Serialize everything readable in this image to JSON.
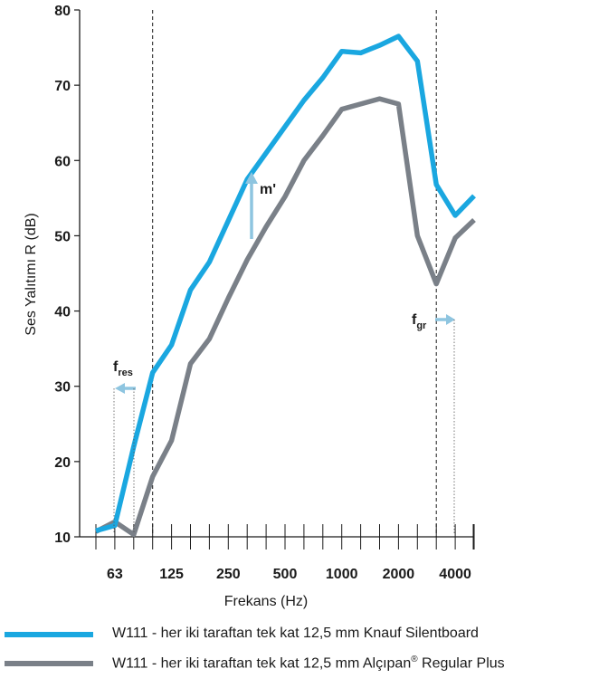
{
  "chart_data": {
    "type": "line",
    "xlabel": "Frekans (Hz)",
    "ylabel": "Ses Yalıtımı R (dB)",
    "ylim": [
      10,
      80
    ],
    "yticks": [
      10,
      20,
      30,
      40,
      50,
      60,
      70,
      80
    ],
    "x_scale": "log",
    "x_frequencies": [
      50,
      63,
      80,
      100,
      125,
      160,
      200,
      250,
      315,
      400,
      500,
      630,
      800,
      1000,
      1250,
      1600,
      2000,
      2500,
      3150,
      4000,
      5000
    ],
    "x_tick_labels": [
      {
        "label": "63",
        "value": 63
      },
      {
        "label": "125",
        "value": 125
      },
      {
        "label": "250",
        "value": 250
      },
      {
        "label": "500",
        "value": 500
      },
      {
        "label": "1000",
        "value": 1000
      },
      {
        "label": "2000",
        "value": 2000
      },
      {
        "label": "4000",
        "value": 4000
      }
    ],
    "series": [
      {
        "name": "W111 - her iki taraftan tek kat 12,5 mm Knauf Silentboard",
        "color": "#1aa7e0",
        "values": [
          10.8,
          11.5,
          22.0,
          31.8,
          35.5,
          42.8,
          46.5,
          52.0,
          57.5,
          61.0,
          64.5,
          68.0,
          71.0,
          74.5,
          74.3,
          75.3,
          76.5,
          73.2,
          56.8,
          52.7,
          55.3
        ]
      },
      {
        "name": "W111 - her iki taraftan tek kat 12,5 mm Alçıpan® Regular Plus",
        "color": "#7a8088",
        "values": [
          10.7,
          12.0,
          10.3,
          18.0,
          22.8,
          33.0,
          36.3,
          41.7,
          46.8,
          51.2,
          55.2,
          60.0,
          63.3,
          66.8,
          67.5,
          68.2,
          67.5,
          50.0,
          43.6,
          49.7,
          52.1
        ]
      }
    ],
    "vertical_markers": [
      100,
      3150
    ],
    "annotations": {
      "m_prime": "m'",
      "f_res_main": "f",
      "f_res_sub": "res",
      "f_gr_main": "f",
      "f_gr_sub": "gr"
    },
    "legend": [
      {
        "text": "W111 - her iki taraftan tek kat 12,5 mm Knauf Silentboard",
        "color": "#1aa7e0"
      },
      {
        "text_before": "W111 - her iki taraftan tek kat 12,5 mm Alçıpan",
        "sup": "®",
        "text_after": " Regular Plus",
        "color": "#7a8088"
      }
    ],
    "arrow_color": "#8ec5e0"
  }
}
